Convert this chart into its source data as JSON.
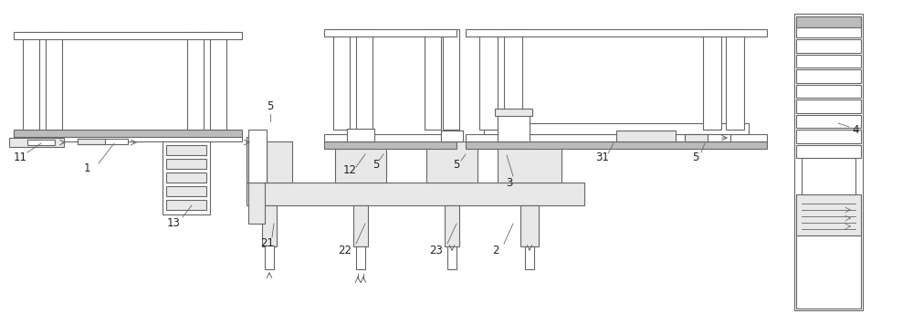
{
  "bg_color": "#ffffff",
  "lc": "#666666",
  "fc_light": "#e8e8e8",
  "fc_gray": "#bbbbbb",
  "figsize": [
    10.0,
    3.55
  ],
  "dpi": 100
}
